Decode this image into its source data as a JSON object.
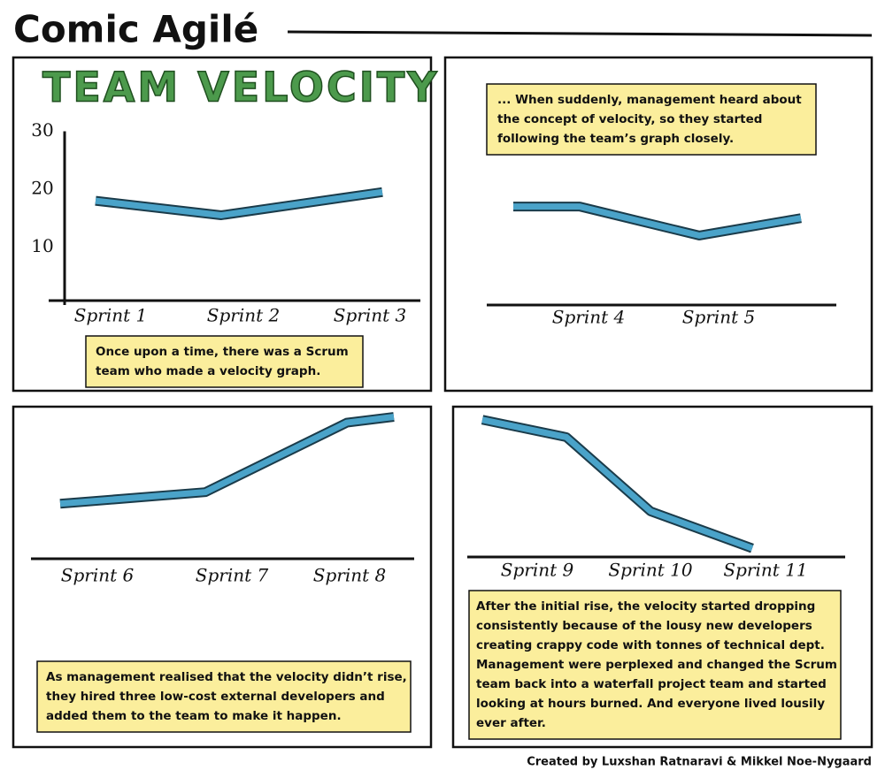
{
  "header": {
    "title": "Comic Agilé"
  },
  "panels": [
    {
      "title": "TEAM VELOCITY",
      "ylim": [
        0,
        30
      ],
      "yticks": [
        10,
        20,
        30
      ],
      "categories": [
        "Sprint 1",
        "Sprint 2",
        "Sprint 3"
      ],
      "values": [
        18,
        15.5,
        19.5
      ],
      "caption": [
        "Once upon a time, there was a Scrum",
        "team who made a velocity graph."
      ]
    },
    {
      "categories": [
        null,
        "Sprint 4",
        "Sprint 5",
        null
      ],
      "values": [
        17,
        17,
        12,
        15
      ],
      "caption": [
        "... When suddenly, management heard about",
        "the concept of velocity, so they started",
        "following the team’s graph closely."
      ]
    },
    {
      "categories": [
        "Sprint 6",
        "Sprint 7",
        "Sprint 8",
        null
      ],
      "values": [
        9.5,
        11.5,
        23.5,
        24.5
      ],
      "caption": [
        "As management realised that the velocity didn’t rise,",
        "they hired three low-cost external developers and",
        "added them to the team to make it happen."
      ]
    },
    {
      "categories": [
        "Sprint 9",
        null,
        "Sprint 10",
        "Sprint 11"
      ],
      "values": [
        24,
        21,
        8.2,
        1.8
      ],
      "caption": [
        "After the initial rise, the velocity started dropping",
        "consistently because of the lousy new developers",
        "creating crappy code with tonnes of technical dept.",
        "Management were perplexed and changed the Scrum",
        "team back into a waterfall project team and started",
        "looking at hours burned. And everyone lived lousily",
        "ever after."
      ]
    }
  ],
  "footer": {
    "credit": "Created by Luxshan Ratnaravi & Mikkel Noe-Nygaard"
  }
}
